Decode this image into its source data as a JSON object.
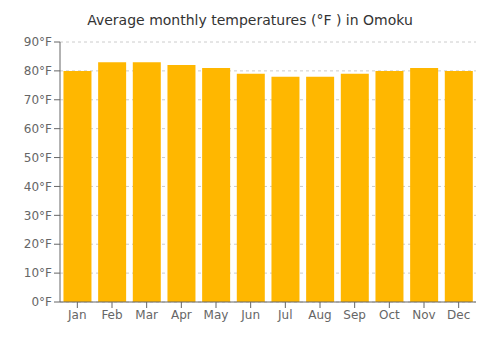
{
  "chart_data": {
    "type": "bar",
    "title": "Average monthly temperatures (°F ) in Omoku",
    "categories": [
      "Jan",
      "Feb",
      "Mar",
      "Apr",
      "May",
      "Jun",
      "Jul",
      "Aug",
      "Sep",
      "Oct",
      "Nov",
      "Dec"
    ],
    "values": [
      80,
      83,
      83,
      82,
      81,
      79,
      78,
      78,
      79,
      80,
      81,
      80
    ],
    "color": "#FFB700",
    "ylim": [
      0,
      90
    ],
    "yticks": [
      {
        "value": 0,
        "label": "0°F"
      },
      {
        "value": 10,
        "label": "10°F"
      },
      {
        "value": 20,
        "label": "20°F"
      },
      {
        "value": 30,
        "label": "30°F"
      },
      {
        "value": 40,
        "label": "40°F"
      },
      {
        "value": 50,
        "label": "50°F"
      },
      {
        "value": 60,
        "label": "60°F"
      },
      {
        "value": 70,
        "label": "70°F"
      },
      {
        "value": 80,
        "label": "80°F"
      },
      {
        "value": 90,
        "label": "90°F"
      }
    ],
    "grid": true
  }
}
